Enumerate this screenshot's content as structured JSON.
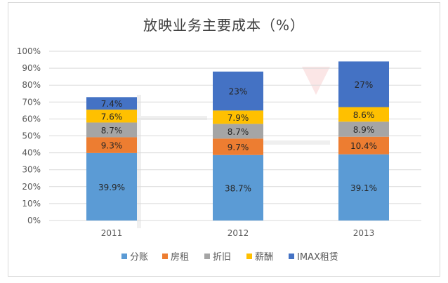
{
  "chart_data": {
    "type": "bar",
    "stacked": true,
    "title": "放映业务主要成本（%）",
    "xlabel": "",
    "ylabel": "",
    "categories": [
      "2011",
      "2012",
      "2013"
    ],
    "ylim": [
      0,
      100
    ],
    "yticks": [
      "0%",
      "10%",
      "20%",
      "30%",
      "40%",
      "50%",
      "60%",
      "70%",
      "80%",
      "90%",
      "100%"
    ],
    "grid": true,
    "legend_position": "bottom",
    "series": [
      {
        "name": "分账",
        "color": "#5b9bd5",
        "values": [
          39.9,
          38.7,
          39.1
        ],
        "labels": [
          "39.9%",
          "38.7%",
          "39.1%"
        ]
      },
      {
        "name": "房租",
        "color": "#ed7d31",
        "values": [
          9.3,
          9.7,
          10.4
        ],
        "labels": [
          "9.3%",
          "9.7%",
          "10.4%"
        ]
      },
      {
        "name": "折旧",
        "color": "#a5a5a5",
        "values": [
          8.7,
          8.7,
          8.9
        ],
        "labels": [
          "8.7%",
          "8.7%",
          "8.9%"
        ]
      },
      {
        "name": "薪酬",
        "color": "#ffc000",
        "values": [
          7.6,
          7.9,
          8.6
        ],
        "labels": [
          "7.6%",
          "7.9%",
          "8.6%"
        ]
      },
      {
        "name": "IMAX租赁",
        "color": "#4472c4",
        "values": [
          7.4,
          23,
          27
        ],
        "labels": [
          "7.4%",
          "23%",
          "27%"
        ]
      }
    ]
  }
}
